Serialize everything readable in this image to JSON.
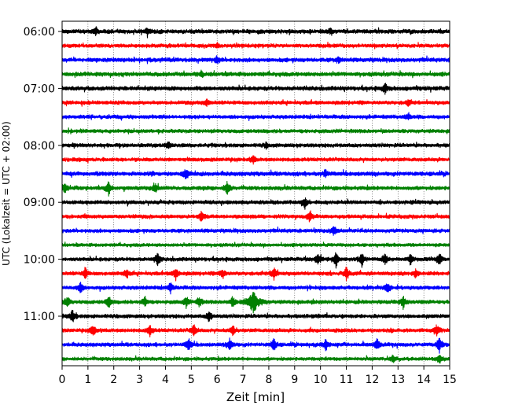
{
  "chart_data": {
    "type": "line",
    "xlabel": "Zeit  [min]",
    "ylabel": "UTC (Lokalzeit = UTC + 02:00)",
    "xlim": [
      0,
      15
    ],
    "x_ticks": [
      "0",
      "1",
      "2",
      "3",
      "4",
      "5",
      "6",
      "7",
      "8",
      "9",
      "10",
      "11",
      "12",
      "13",
      "14",
      "15"
    ],
    "y_tick_labels": [
      "06:00",
      "07:00",
      "08:00",
      "09:00",
      "10:00",
      "11:00"
    ],
    "y_tick_rows": [
      0,
      4,
      8,
      12,
      16,
      20
    ],
    "grid": "vertical dotted lines at each minute",
    "trace_minutes": 15,
    "row_colors": [
      "#000000",
      "#ff0000",
      "#0000ff",
      "#008000"
    ],
    "rows": [
      {
        "start": "06:00",
        "noise": 0.22,
        "events": [
          {
            "x": 1.3,
            "amp": 0.35
          },
          {
            "x": 3.3,
            "amp": 0.3
          },
          {
            "x": 10.4,
            "amp": 0.3
          }
        ]
      },
      {
        "start": "06:15",
        "noise": 0.2,
        "events": [
          {
            "x": 6.0,
            "amp": 0.3
          }
        ]
      },
      {
        "start": "06:30",
        "noise": 0.22,
        "events": [
          {
            "x": 6.0,
            "amp": 0.45
          },
          {
            "x": 10.7,
            "amp": 0.3
          }
        ]
      },
      {
        "start": "06:45",
        "noise": 0.22,
        "events": [
          {
            "x": 5.4,
            "amp": 0.3
          }
        ]
      },
      {
        "start": "07:00",
        "noise": 0.22,
        "events": [
          {
            "x": 12.5,
            "amp": 0.6
          }
        ]
      },
      {
        "start": "07:15",
        "noise": 0.2,
        "events": [
          {
            "x": 5.6,
            "amp": 0.45
          },
          {
            "x": 13.4,
            "amp": 0.35
          }
        ]
      },
      {
        "start": "07:30",
        "noise": 0.2,
        "events": [
          {
            "x": 13.4,
            "amp": 0.4
          }
        ]
      },
      {
        "start": "07:45",
        "noise": 0.2,
        "events": []
      },
      {
        "start": "08:00",
        "noise": 0.2,
        "events": [
          {
            "x": 4.1,
            "amp": 0.45
          },
          {
            "x": 7.9,
            "amp": 0.3
          }
        ]
      },
      {
        "start": "08:15",
        "noise": 0.2,
        "events": [
          {
            "x": 7.4,
            "amp": 0.45
          }
        ]
      },
      {
        "start": "08:30",
        "noise": 0.22,
        "events": [
          {
            "x": 4.8,
            "amp": 0.8
          },
          {
            "x": 10.2,
            "amp": 0.5
          }
        ]
      },
      {
        "start": "08:45",
        "noise": 0.2,
        "events": [
          {
            "x": 0.1,
            "amp": 0.7
          },
          {
            "x": 1.8,
            "amp": 0.9
          },
          {
            "x": 3.6,
            "amp": 0.6
          },
          {
            "x": 6.4,
            "amp": 0.9
          }
        ]
      },
      {
        "start": "09:00",
        "noise": 0.2,
        "events": [
          {
            "x": 9.4,
            "amp": 0.6
          }
        ]
      },
      {
        "start": "09:15",
        "noise": 0.2,
        "events": [
          {
            "x": 5.4,
            "amp": 0.7
          },
          {
            "x": 9.6,
            "amp": 0.8
          }
        ]
      },
      {
        "start": "09:30",
        "noise": 0.2,
        "events": [
          {
            "x": 10.5,
            "amp": 0.65
          }
        ]
      },
      {
        "start": "09:45",
        "noise": 0.18,
        "events": []
      },
      {
        "start": "10:00",
        "noise": 0.2,
        "events": [
          {
            "x": 3.7,
            "amp": 0.8
          },
          {
            "x": 9.9,
            "amp": 0.8
          },
          {
            "x": 10.6,
            "amp": 1.0
          },
          {
            "x": 11.6,
            "amp": 0.8
          },
          {
            "x": 12.5,
            "amp": 0.8
          },
          {
            "x": 13.5,
            "amp": 0.8
          },
          {
            "x": 14.6,
            "amp": 0.8
          }
        ]
      },
      {
        "start": "10:15",
        "noise": 0.2,
        "events": [
          {
            "x": 0.9,
            "amp": 0.7
          },
          {
            "x": 2.5,
            "amp": 0.6
          },
          {
            "x": 4.4,
            "amp": 0.8
          },
          {
            "x": 6.2,
            "amp": 0.7
          },
          {
            "x": 8.2,
            "amp": 0.8
          },
          {
            "x": 11.0,
            "amp": 0.8
          },
          {
            "x": 13.7,
            "amp": 0.7
          }
        ]
      },
      {
        "start": "10:30",
        "noise": 0.2,
        "events": [
          {
            "x": 0.7,
            "amp": 0.7
          },
          {
            "x": 4.2,
            "amp": 0.7
          },
          {
            "x": 12.6,
            "amp": 0.7
          }
        ]
      },
      {
        "start": "10:45",
        "noise": 0.2,
        "events": [
          {
            "x": 0.2,
            "amp": 0.7
          },
          {
            "x": 1.8,
            "amp": 0.8
          },
          {
            "x": 3.2,
            "amp": 0.7
          },
          {
            "x": 4.8,
            "amp": 0.7
          },
          {
            "x": 5.3,
            "amp": 0.7
          },
          {
            "x": 6.6,
            "amp": 0.7
          },
          {
            "x": 7.4,
            "amp": 1.3
          },
          {
            "x": 13.2,
            "amp": 0.8
          }
        ]
      },
      {
        "start": "11:00",
        "noise": 0.2,
        "events": [
          {
            "x": 0.4,
            "amp": 0.9
          },
          {
            "x": 5.7,
            "amp": 0.7
          }
        ]
      },
      {
        "start": "11:15",
        "noise": 0.2,
        "events": [
          {
            "x": 1.2,
            "amp": 0.8
          },
          {
            "x": 3.4,
            "amp": 0.7
          },
          {
            "x": 5.1,
            "amp": 0.8
          },
          {
            "x": 6.6,
            "amp": 0.7
          },
          {
            "x": 14.5,
            "amp": 0.7
          }
        ]
      },
      {
        "start": "11:30",
        "noise": 0.2,
        "events": [
          {
            "x": 4.9,
            "amp": 0.8
          },
          {
            "x": 6.5,
            "amp": 0.8
          },
          {
            "x": 8.2,
            "amp": 0.8
          },
          {
            "x": 10.2,
            "amp": 0.7
          },
          {
            "x": 12.2,
            "amp": 0.7
          },
          {
            "x": 14.6,
            "amp": 0.9
          }
        ]
      },
      {
        "start": "11:45",
        "noise": 0.18,
        "events": [
          {
            "x": 12.8,
            "amp": 0.5
          },
          {
            "x": 14.6,
            "amp": 0.7
          }
        ]
      }
    ]
  }
}
